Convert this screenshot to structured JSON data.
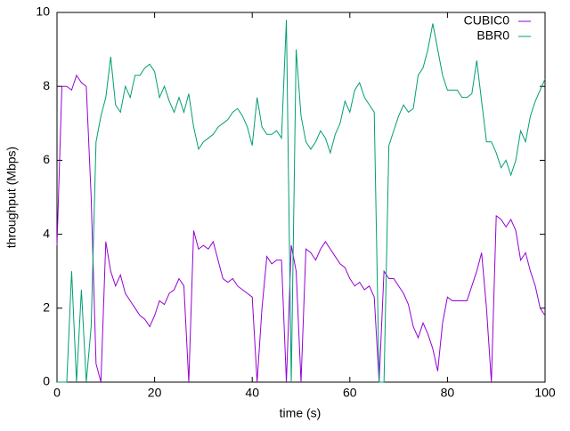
{
  "chart_data": {
    "type": "line",
    "x_label": "time (s)",
    "y_label": "throughput (Mbps)",
    "xlim": [
      0,
      100
    ],
    "ylim": [
      0,
      10
    ],
    "xticks": [
      0,
      20,
      40,
      60,
      80,
      100
    ],
    "yticks": [
      0,
      2,
      4,
      6,
      8,
      10
    ],
    "grid": false,
    "legend": "top-right",
    "x": [
      0,
      1,
      2,
      3,
      4,
      5,
      6,
      7,
      8,
      9,
      10,
      11,
      12,
      13,
      14,
      15,
      16,
      17,
      18,
      19,
      20,
      21,
      22,
      23,
      24,
      25,
      26,
      27,
      28,
      29,
      30,
      31,
      32,
      33,
      34,
      35,
      36,
      37,
      38,
      39,
      40,
      41,
      42,
      43,
      44,
      45,
      46,
      47,
      48,
      49,
      50,
      51,
      52,
      53,
      54,
      55,
      56,
      57,
      58,
      59,
      60,
      61,
      62,
      63,
      64,
      65,
      66,
      67,
      68,
      69,
      70,
      71,
      72,
      73,
      74,
      75,
      76,
      77,
      78,
      79,
      80,
      81,
      82,
      83,
      84,
      85,
      86,
      87,
      88,
      89,
      90,
      91,
      92,
      93,
      94,
      95,
      96,
      97,
      98,
      99,
      100
    ],
    "series": [
      {
        "name": "CUBIC0",
        "color": "#9400d3",
        "values": [
          3.7,
          8.0,
          8.0,
          7.9,
          8.3,
          8.1,
          8.0,
          5.0,
          0.5,
          0,
          3.8,
          3.0,
          2.6,
          2.9,
          2.4,
          2.2,
          2.0,
          1.8,
          1.7,
          1.5,
          1.8,
          2.2,
          2.1,
          2.4,
          2.5,
          2.8,
          2.6,
          0,
          4.1,
          3.6,
          3.7,
          3.6,
          3.8,
          3.3,
          2.8,
          2.7,
          2.8,
          2.6,
          2.5,
          2.4,
          2.3,
          0,
          2.0,
          3.4,
          3.2,
          3.3,
          3.3,
          0,
          3.7,
          3.0,
          0,
          3.6,
          3.5,
          3.3,
          3.6,
          3.8,
          3.6,
          3.4,
          3.2,
          3.1,
          2.8,
          2.6,
          2.7,
          2.5,
          2.6,
          2.3,
          0,
          3.0,
          2.8,
          2.8,
          2.6,
          2.4,
          2.1,
          1.5,
          1.2,
          1.6,
          1.3,
          0.9,
          0.3,
          1.6,
          2.3,
          2.2,
          2.2,
          2.2,
          2.2,
          2.6,
          3.0,
          3.5,
          2.0,
          0,
          4.5,
          4.4,
          4.2,
          4.4,
          4.1,
          3.3,
          3.5,
          3.0,
          2.6,
          2.0,
          1.8
        ]
      },
      {
        "name": "BBR0",
        "color": "#009e73",
        "values": [
          0,
          0,
          0,
          3.0,
          0,
          2.5,
          0,
          1.5,
          6.5,
          7.2,
          7.7,
          8.8,
          7.5,
          7.3,
          8.0,
          7.7,
          8.3,
          8.3,
          8.5,
          8.6,
          8.4,
          7.7,
          8.0,
          7.6,
          7.3,
          7.7,
          7.3,
          7.8,
          6.9,
          6.3,
          6.5,
          6.6,
          6.7,
          6.9,
          7.0,
          7.1,
          7.3,
          7.4,
          7.2,
          6.9,
          6.4,
          7.7,
          6.9,
          6.7,
          6.7,
          6.8,
          6.6,
          9.8,
          0,
          9.0,
          7.2,
          6.5,
          6.3,
          6.5,
          6.8,
          6.6,
          6.2,
          6.7,
          7.0,
          7.6,
          7.3,
          7.9,
          8.1,
          7.7,
          7.5,
          7.3,
          0,
          0,
          6.4,
          6.8,
          7.2,
          7.5,
          7.3,
          7.4,
          8.3,
          8.5,
          9.0,
          9.7,
          9.0,
          8.3,
          7.9,
          7.9,
          7.9,
          7.7,
          7.7,
          7.8,
          8.7,
          7.6,
          6.5,
          6.5,
          6.2,
          5.8,
          6.0,
          5.6,
          6.0,
          6.8,
          6.5,
          7.2,
          7.6,
          7.9,
          8.2
        ]
      }
    ]
  }
}
